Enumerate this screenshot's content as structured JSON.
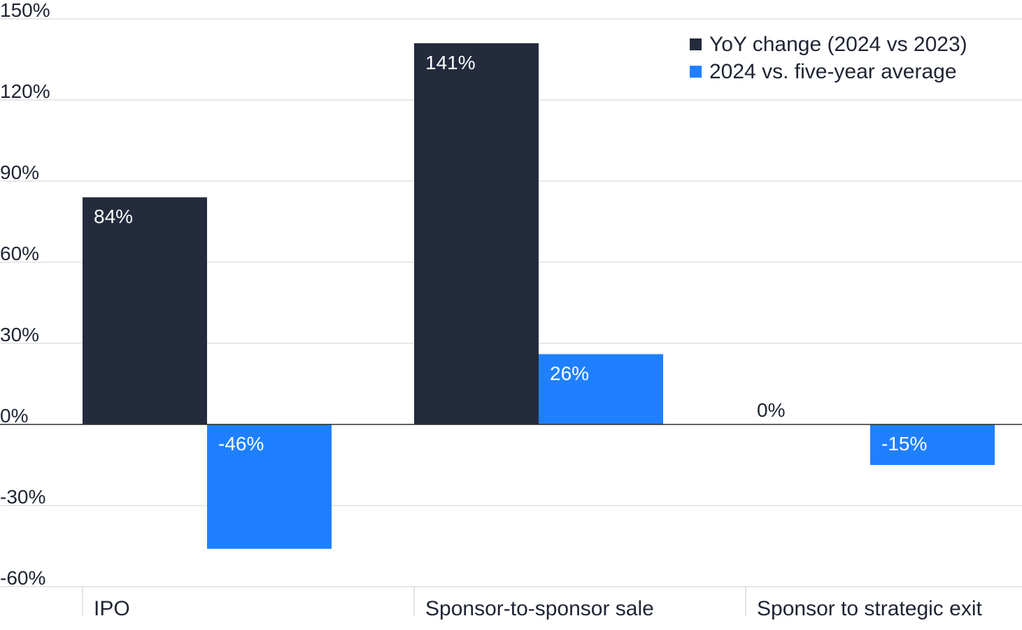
{
  "chart_data": {
    "type": "bar",
    "title": "",
    "xlabel": "",
    "ylabel": "",
    "categories": [
      "IPO",
      "Sponsor-to-sponsor sale",
      "Sponsor to strategic exit"
    ],
    "series": [
      {
        "name": "YoY change (2024 vs 2023)",
        "color": "#242b3d",
        "values": [
          84,
          141,
          0
        ],
        "labels": [
          "84%",
          "141%",
          "0%"
        ]
      },
      {
        "name": "2024 vs. five-year average",
        "color": "#1f80ff",
        "values": [
          -46,
          26,
          -15
        ],
        "labels": [
          "-46%",
          "26%",
          "-15%"
        ]
      }
    ],
    "ylim": [
      -60,
      150
    ],
    "yticks": [
      150,
      120,
      90,
      60,
      30,
      0,
      -30,
      -60
    ],
    "ytick_labels": [
      "150%",
      "120%",
      "90%",
      "60%",
      "30%",
      "0%",
      "-30%",
      "-60%"
    ],
    "grid": true,
    "legend_position": "top-right"
  }
}
